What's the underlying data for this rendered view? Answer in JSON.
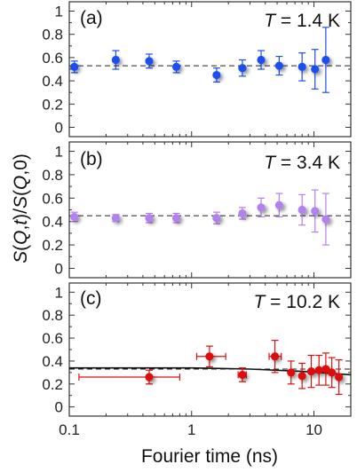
{
  "figure": {
    "ylabel": "S(Q,t)/S(Q,0)",
    "xlabel": "Fourier time (ns)"
  },
  "chart_data": [
    {
      "type": "scatter",
      "panel_label": "(a)",
      "temperature": "T = 1.4 K",
      "color": "#1c4ff0",
      "xscale": "log",
      "xlim": [
        0.1,
        20
      ],
      "ylim": [
        -0.08,
        1.08
      ],
      "yticks": [
        0,
        0.2,
        0.4,
        0.6,
        0.8,
        1
      ],
      "ytick_labels": [
        "0",
        "0.2",
        "0.4",
        "0.6",
        "0.8",
        "1"
      ],
      "reference_line": 0.53,
      "points": [
        {
          "x": 0.11,
          "y": 0.52,
          "yerr": 0.05
        },
        {
          "x": 0.24,
          "y": 0.58,
          "yerr": 0.08
        },
        {
          "x": 0.45,
          "y": 0.57,
          "yerr": 0.06
        },
        {
          "x": 0.75,
          "y": 0.52,
          "yerr": 0.05
        },
        {
          "x": 1.6,
          "y": 0.45,
          "yerr": 0.06
        },
        {
          "x": 2.6,
          "y": 0.51,
          "yerr": 0.07
        },
        {
          "x": 3.7,
          "y": 0.58,
          "yerr": 0.08
        },
        {
          "x": 5.2,
          "y": 0.53,
          "yerr": 0.08
        },
        {
          "x": 8.0,
          "y": 0.52,
          "yerr": 0.12
        },
        {
          "x": 10.2,
          "y": 0.5,
          "yerr": 0.17
        },
        {
          "x": 12.5,
          "y": 0.58,
          "yerr": 0.28
        }
      ]
    },
    {
      "type": "scatter",
      "panel_label": "(b)",
      "temperature": "T = 3.4 K",
      "color": "#b380f0",
      "xscale": "log",
      "xlim": [
        0.1,
        20
      ],
      "ylim": [
        -0.08,
        1.08
      ],
      "yticks": [
        0,
        0.2,
        0.4,
        0.6,
        0.8,
        1
      ],
      "ytick_labels": [
        "0",
        "0.2",
        "0.4",
        "0.6",
        "0.8",
        "1"
      ],
      "reference_line": 0.45,
      "points": [
        {
          "x": 0.11,
          "y": 0.44,
          "yerr": 0.04
        },
        {
          "x": 0.24,
          "y": 0.43,
          "yerr": 0.03
        },
        {
          "x": 0.45,
          "y": 0.43,
          "yerr": 0.04
        },
        {
          "x": 0.75,
          "y": 0.43,
          "yerr": 0.04
        },
        {
          "x": 1.6,
          "y": 0.43,
          "yerr": 0.05
        },
        {
          "x": 2.6,
          "y": 0.47,
          "yerr": 0.05
        },
        {
          "x": 3.7,
          "y": 0.52,
          "yerr": 0.08
        },
        {
          "x": 5.2,
          "y": 0.54,
          "yerr": 0.1
        },
        {
          "x": 8.0,
          "y": 0.5,
          "yerr": 0.13
        },
        {
          "x": 10.2,
          "y": 0.49,
          "yerr": 0.18
        },
        {
          "x": 12.5,
          "y": 0.42,
          "yerr": 0.22
        }
      ]
    },
    {
      "type": "scatter",
      "panel_label": "(c)",
      "temperature": "T = 10.2 K",
      "color": "#dd1010",
      "xscale": "log",
      "xlim": [
        0.1,
        20
      ],
      "ylim": [
        -0.08,
        1.08
      ],
      "yticks": [
        0,
        0.2,
        0.4,
        0.6,
        0.8,
        1
      ],
      "ytick_labels": [
        "0",
        "0.2",
        "0.4",
        "0.6",
        "0.8",
        "1"
      ],
      "xticks": [
        0.1,
        1,
        10
      ],
      "xtick_labels": [
        "0.1",
        "1",
        "10"
      ],
      "reference_line": 0.33,
      "fit_curve": [
        [
          0.1,
          0.34
        ],
        [
          1,
          0.34
        ],
        [
          3,
          0.33
        ],
        [
          8,
          0.31
        ],
        [
          20,
          0.28
        ]
      ],
      "points": [
        {
          "x": 0.45,
          "y": 0.26,
          "yerr": 0.06,
          "xerr_low": 0.12,
          "xerr_high": 0.8
        },
        {
          "x": 1.4,
          "y": 0.44,
          "yerr": 0.09,
          "xerr_low": 1.1,
          "xerr_high": 1.9
        },
        {
          "x": 2.6,
          "y": 0.28,
          "yerr": 0.06,
          "xerr_low": 2.4,
          "xerr_high": 2.8
        },
        {
          "x": 4.8,
          "y": 0.44,
          "yerr": 0.14,
          "xerr_low": 4.3,
          "xerr_high": 5.4
        },
        {
          "x": 6.5,
          "y": 0.3,
          "yerr": 0.1
        },
        {
          "x": 8.0,
          "y": 0.27,
          "yerr": 0.11
        },
        {
          "x": 9.5,
          "y": 0.31,
          "yerr": 0.14
        },
        {
          "x": 11.0,
          "y": 0.32,
          "yerr": 0.13
        },
        {
          "x": 12.5,
          "y": 0.33,
          "yerr": 0.14
        },
        {
          "x": 14.0,
          "y": 0.3,
          "yerr": 0.13
        },
        {
          "x": 16.0,
          "y": 0.26,
          "yerr": 0.15
        }
      ]
    }
  ]
}
